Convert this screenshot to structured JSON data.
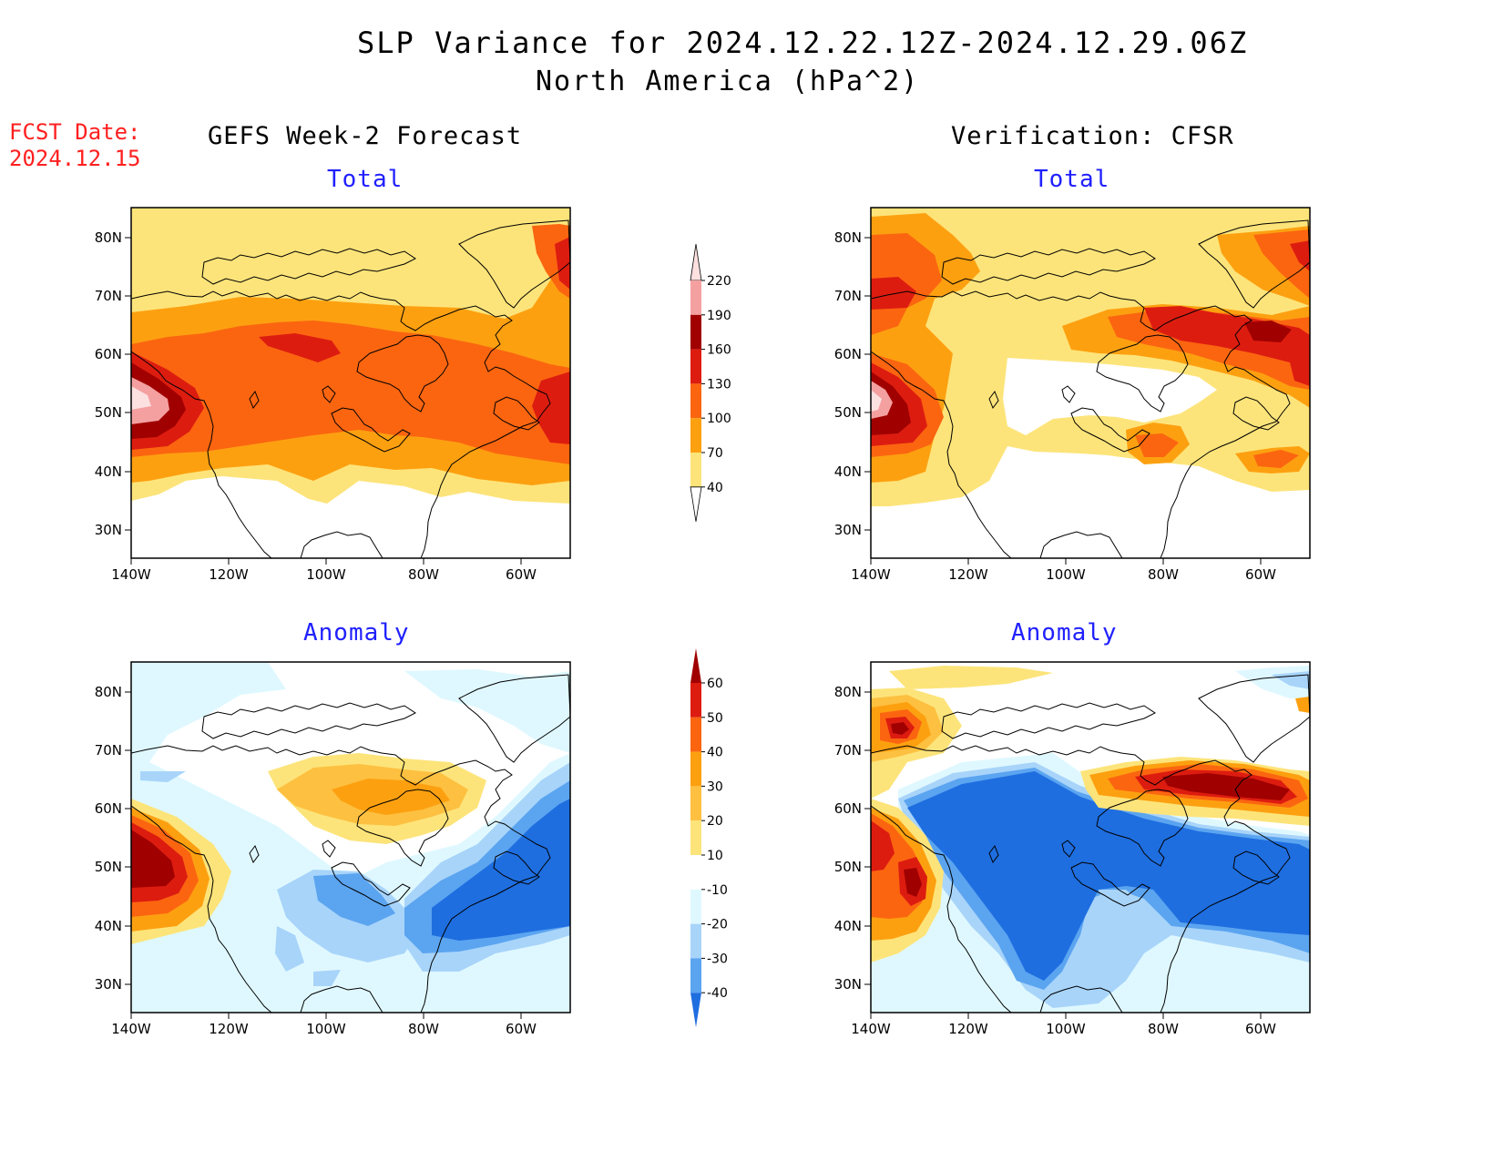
{
  "title": "SLP Variance for 2024.12.22.12Z-2024.12.29.06Z",
  "subtitle": "North America (hPa^2)",
  "fcst_date_label": "FCST Date:",
  "fcst_date_value": "2024.12.15",
  "columns": {
    "left": "GEFS Week-2 Forecast",
    "right": "Verification: CFSR"
  },
  "panels": [
    {
      "id": "fcst-total",
      "label": "Total"
    },
    {
      "id": "verif-total",
      "label": "Total"
    },
    {
      "id": "fcst-anomaly",
      "label": "Anomaly"
    },
    {
      "id": "verif-anomaly",
      "label": "Anomaly"
    }
  ],
  "map": {
    "lat_ticks": [
      "80N",
      "70N",
      "60N",
      "50N",
      "40N",
      "30N"
    ],
    "lon_ticks": [
      "140W",
      "120W",
      "100W",
      "80W",
      "60W"
    ],
    "lat_range": [
      25,
      85
    ],
    "lon_range": [
      -140,
      -50
    ]
  },
  "colorbar_total": {
    "levels": [
      "220",
      "190",
      "160",
      "130",
      "100",
      "70",
      "40"
    ],
    "colors": [
      "#fde0e0",
      "#f4a0a0",
      "#a00000",
      "#dd1c10",
      "#fb6510",
      "#fda010",
      "#fde47a"
    ]
  },
  "colorbar_anomaly": {
    "levels": [
      "60",
      "50",
      "40",
      "30",
      "20",
      "10",
      "-10",
      "-20",
      "-30",
      "-40"
    ],
    "colors": [
      "#a00000",
      "#dd1c10",
      "#fb6510",
      "#fda010",
      "#fdc040",
      "#fde47a",
      "#ffffff",
      "#dff8ff",
      "#a8d4fa",
      "#5ba4f0",
      "#1e6ee0"
    ]
  }
}
